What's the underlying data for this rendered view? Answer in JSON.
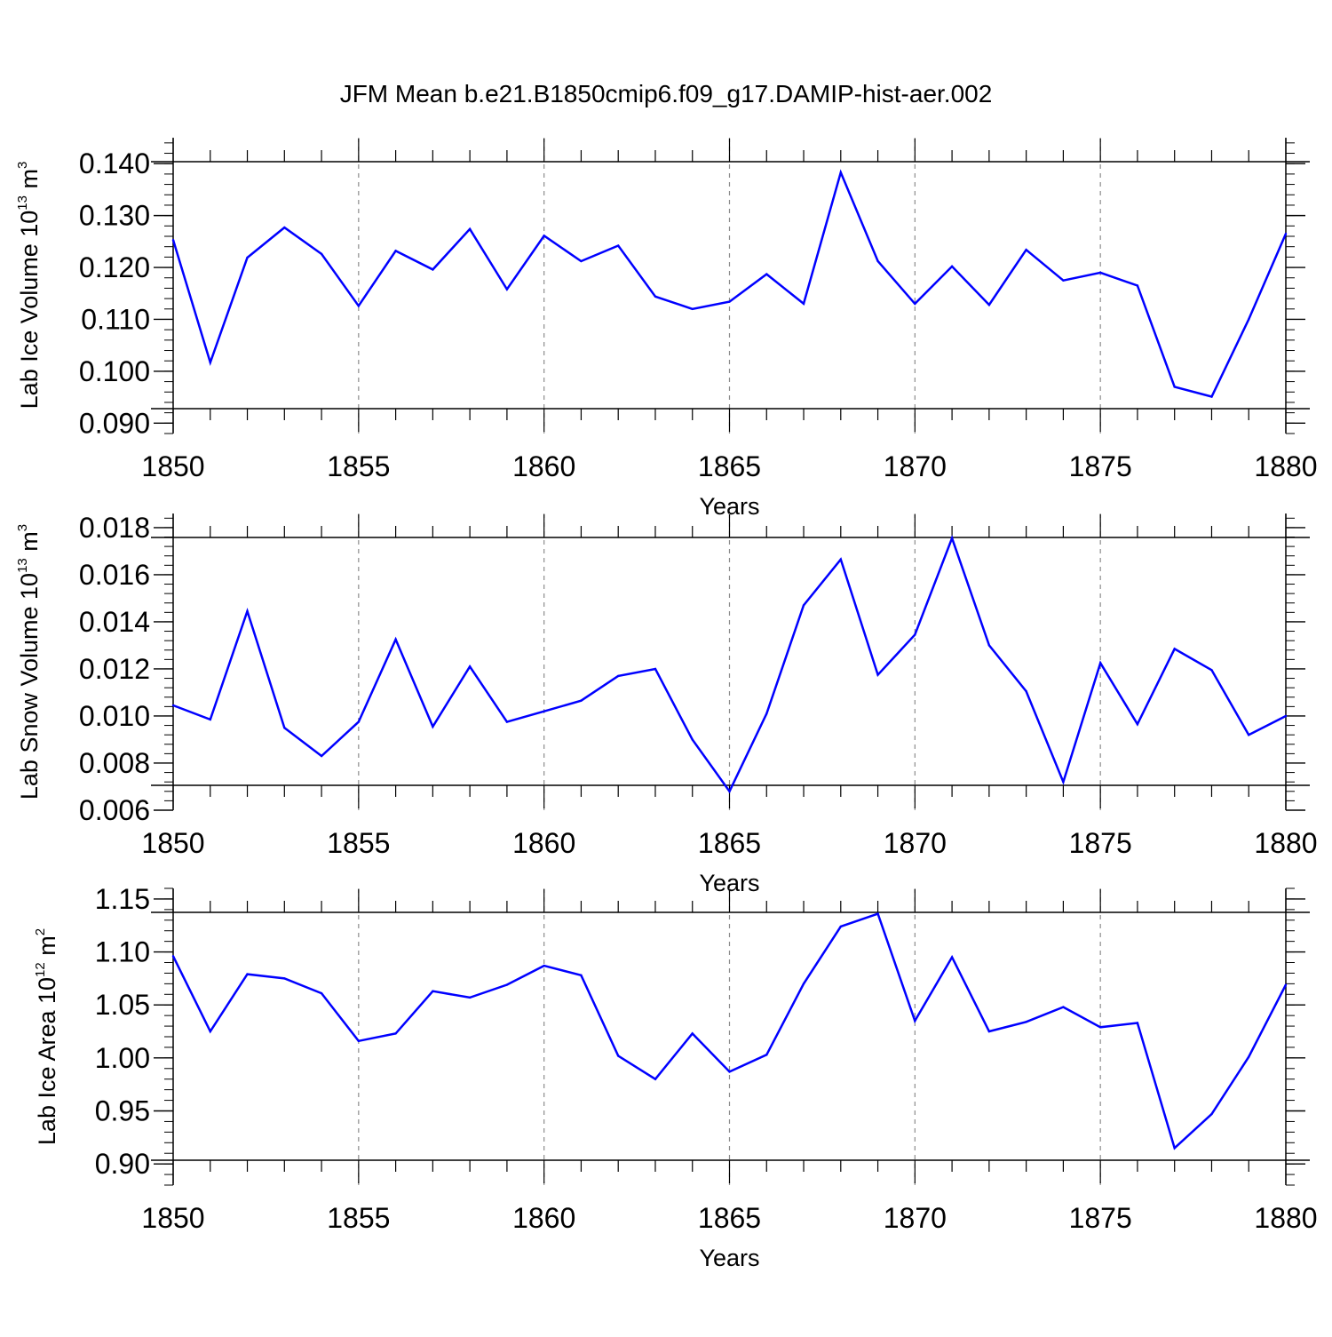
{
  "title": "JFM Mean b.e21.B1850cmip6.f09_g17.DAMIP-hist-aer.002",
  "colors": {
    "series": "#0000ff",
    "axis": "#000000",
    "grid": "#8c8c8c"
  },
  "chart_data": [
    {
      "type": "line",
      "ylabel": {
        "text": "Lab Ice Volume 10",
        "exp": "13",
        "unit": " m",
        "unit_exp": "3"
      },
      "xlabel": "Years",
      "xlim": [
        1850,
        1880
      ],
      "ylim": [
        0.088,
        0.145
      ],
      "yticks": [
        "0.090",
        "0.100",
        "0.110",
        "0.120",
        "0.130",
        "0.140"
      ],
      "xticks": [
        "1850",
        "1855",
        "1860",
        "1865",
        "1870",
        "1875",
        "1880"
      ],
      "grid": "vertical dashed",
      "x": [
        1850,
        1851,
        1852,
        1853,
        1854,
        1855,
        1856,
        1857,
        1858,
        1859,
        1860,
        1861,
        1862,
        1863,
        1864,
        1865,
        1866,
        1867,
        1868,
        1869,
        1870,
        1871,
        1872,
        1873,
        1874,
        1875,
        1876,
        1877,
        1878,
        1879,
        1880
      ],
      "values": [
        0.1253,
        0.1017,
        0.1219,
        0.1277,
        0.1226,
        0.1126,
        0.1232,
        0.1196,
        0.1274,
        0.1158,
        0.1261,
        0.1212,
        0.1242,
        0.1144,
        0.112,
        0.1134,
        0.1187,
        0.113,
        0.1383,
        0.1212,
        0.113,
        0.1202,
        0.1128,
        0.1234,
        0.1175,
        0.119,
        0.1165,
        0.097,
        0.0951,
        0.11,
        0.1265
      ]
    },
    {
      "type": "line",
      "ylabel": {
        "text": "Lab Snow Volume 10",
        "exp": "13",
        "unit": " m",
        "unit_exp": "3"
      },
      "xlabel": "Years",
      "xlim": [
        1850,
        1880
      ],
      "ylim": [
        0.006,
        0.0186
      ],
      "yticks": [
        "0.006",
        "0.008",
        "0.010",
        "0.012",
        "0.014",
        "0.016",
        "0.018"
      ],
      "xticks": [
        "1850",
        "1855",
        "1860",
        "1865",
        "1870",
        "1875",
        "1880"
      ],
      "grid": "vertical dashed",
      "x": [
        1850,
        1851,
        1852,
        1853,
        1854,
        1855,
        1856,
        1857,
        1858,
        1859,
        1860,
        1861,
        1862,
        1863,
        1864,
        1865,
        1866,
        1867,
        1868,
        1869,
        1870,
        1871,
        1872,
        1873,
        1874,
        1875,
        1876,
        1877,
        1878,
        1879,
        1880
      ],
      "values": [
        0.01045,
        0.00985,
        0.01445,
        0.0095,
        0.0083,
        0.00975,
        0.01325,
        0.00955,
        0.0121,
        0.00975,
        0.0102,
        0.01065,
        0.0117,
        0.012,
        0.009,
        0.0068,
        0.0101,
        0.0147,
        0.01665,
        0.01175,
        0.01345,
        0.01755,
        0.013,
        0.01105,
        0.0072,
        0.01225,
        0.00965,
        0.01285,
        0.01195,
        0.0092,
        0.01
      ]
    },
    {
      "type": "line",
      "ylabel": {
        "text": "Lab Ice Area 10",
        "exp": "12",
        "unit": " m",
        "unit_exp": "2"
      },
      "xlabel": "Years",
      "xlim": [
        1850,
        1880
      ],
      "ylim": [
        0.88,
        1.16
      ],
      "yticks": [
        "0.90",
        "0.95",
        "1.00",
        "1.05",
        "1.10",
        "1.15"
      ],
      "xticks": [
        "1850",
        "1855",
        "1860",
        "1865",
        "1870",
        "1875",
        "1880"
      ],
      "grid": "vertical dashed",
      "x": [
        1850,
        1851,
        1852,
        1853,
        1854,
        1855,
        1856,
        1857,
        1858,
        1859,
        1860,
        1861,
        1862,
        1863,
        1864,
        1865,
        1866,
        1867,
        1868,
        1869,
        1870,
        1871,
        1872,
        1873,
        1874,
        1875,
        1876,
        1877,
        1878,
        1879,
        1880
      ],
      "values": [
        1.096,
        1.025,
        1.079,
        1.075,
        1.061,
        1.016,
        1.023,
        1.063,
        1.057,
        1.069,
        1.087,
        1.078,
        1.002,
        0.98,
        1.023,
        0.987,
        1.003,
        1.07,
        1.124,
        1.136,
        1.035,
        1.095,
        1.025,
        1.034,
        1.048,
        1.029,
        1.033,
        0.915,
        0.947,
        1.001,
        1.069
      ]
    }
  ]
}
